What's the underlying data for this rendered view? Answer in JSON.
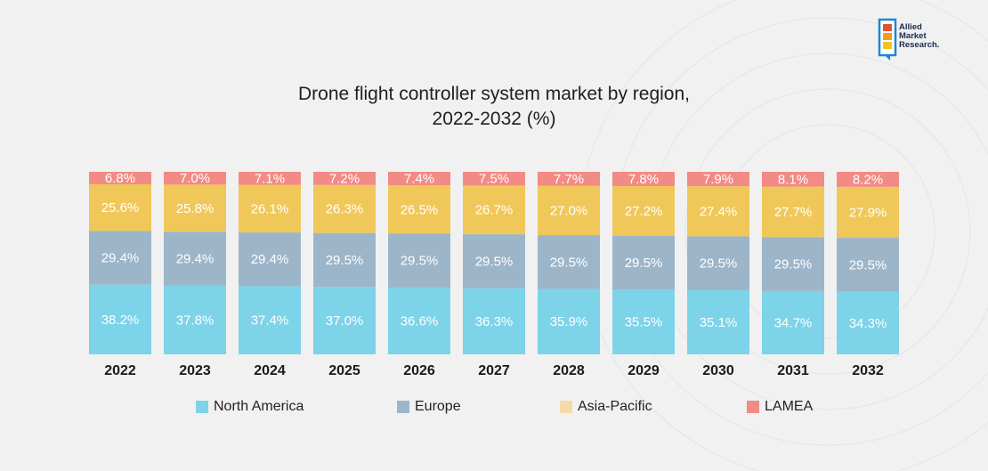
{
  "title_line1": "Drone flight controller system market by region,",
  "title_line2": "2022-2032 (%)",
  "logo": {
    "line1": "Allied",
    "line2": "Market",
    "line3": "Research."
  },
  "colors": {
    "North America": "#7dd3e8",
    "Europe": "#9db5c9",
    "Asia-Pacific": "#f0c85a",
    "LAMEA": "#f28a85",
    "legend_asia": "#f7d9a8"
  },
  "chart_data": {
    "type": "bar",
    "stacked": true,
    "title": "Drone flight controller system market by region, 2022-2032 (%)",
    "categories": [
      "2022",
      "2023",
      "2024",
      "2025",
      "2026",
      "2027",
      "2028",
      "2029",
      "2030",
      "2031",
      "2032"
    ],
    "series": [
      {
        "name": "North America",
        "values": [
          38.2,
          37.8,
          37.4,
          37.0,
          36.6,
          36.3,
          35.9,
          35.5,
          35.1,
          34.7,
          34.3
        ],
        "labels": [
          "38.2%",
          "37.8%",
          "37.4%",
          "37.0%",
          "36.6%",
          "36.3%",
          "35.9%",
          "35.5%",
          "35.1%",
          "34.7%",
          "34.3%"
        ]
      },
      {
        "name": "Europe",
        "values": [
          29.4,
          29.4,
          29.4,
          29.5,
          29.5,
          29.5,
          29.5,
          29.5,
          29.5,
          29.5,
          29.5
        ],
        "labels": [
          "29.4%",
          "29.4%",
          "29.4%",
          "29.5%",
          "29.5%",
          "29.5%",
          "29.5%",
          "29.5%",
          "29.5%",
          "29.5%",
          "29.5%"
        ]
      },
      {
        "name": "Asia-Pacific",
        "values": [
          25.6,
          25.8,
          26.1,
          26.3,
          26.5,
          26.7,
          27.0,
          27.2,
          27.4,
          27.7,
          27.9
        ],
        "labels": [
          "25.6%",
          "25.8%",
          "26.1%",
          "26.3%",
          "26.5%",
          "26.7%",
          "27.0%",
          "27.2%",
          "27.4%",
          "27.7%",
          "27.9%"
        ]
      },
      {
        "name": "LAMEA",
        "values": [
          6.8,
          7.0,
          7.1,
          7.2,
          7.4,
          7.5,
          7.7,
          7.8,
          7.9,
          8.1,
          8.2
        ],
        "labels": [
          "6.8%",
          "7.0%",
          "7.1%",
          "7.2%",
          "7.4%",
          "7.5%",
          "7.7%",
          "7.8%",
          "7.9%",
          "8.1%",
          "8.2%"
        ]
      }
    ],
    "legend": [
      "North America",
      "Europe",
      "Asia-Pacific",
      "LAMEA"
    ],
    "ylim": [
      0,
      100
    ],
    "legend_position": "bottom"
  }
}
